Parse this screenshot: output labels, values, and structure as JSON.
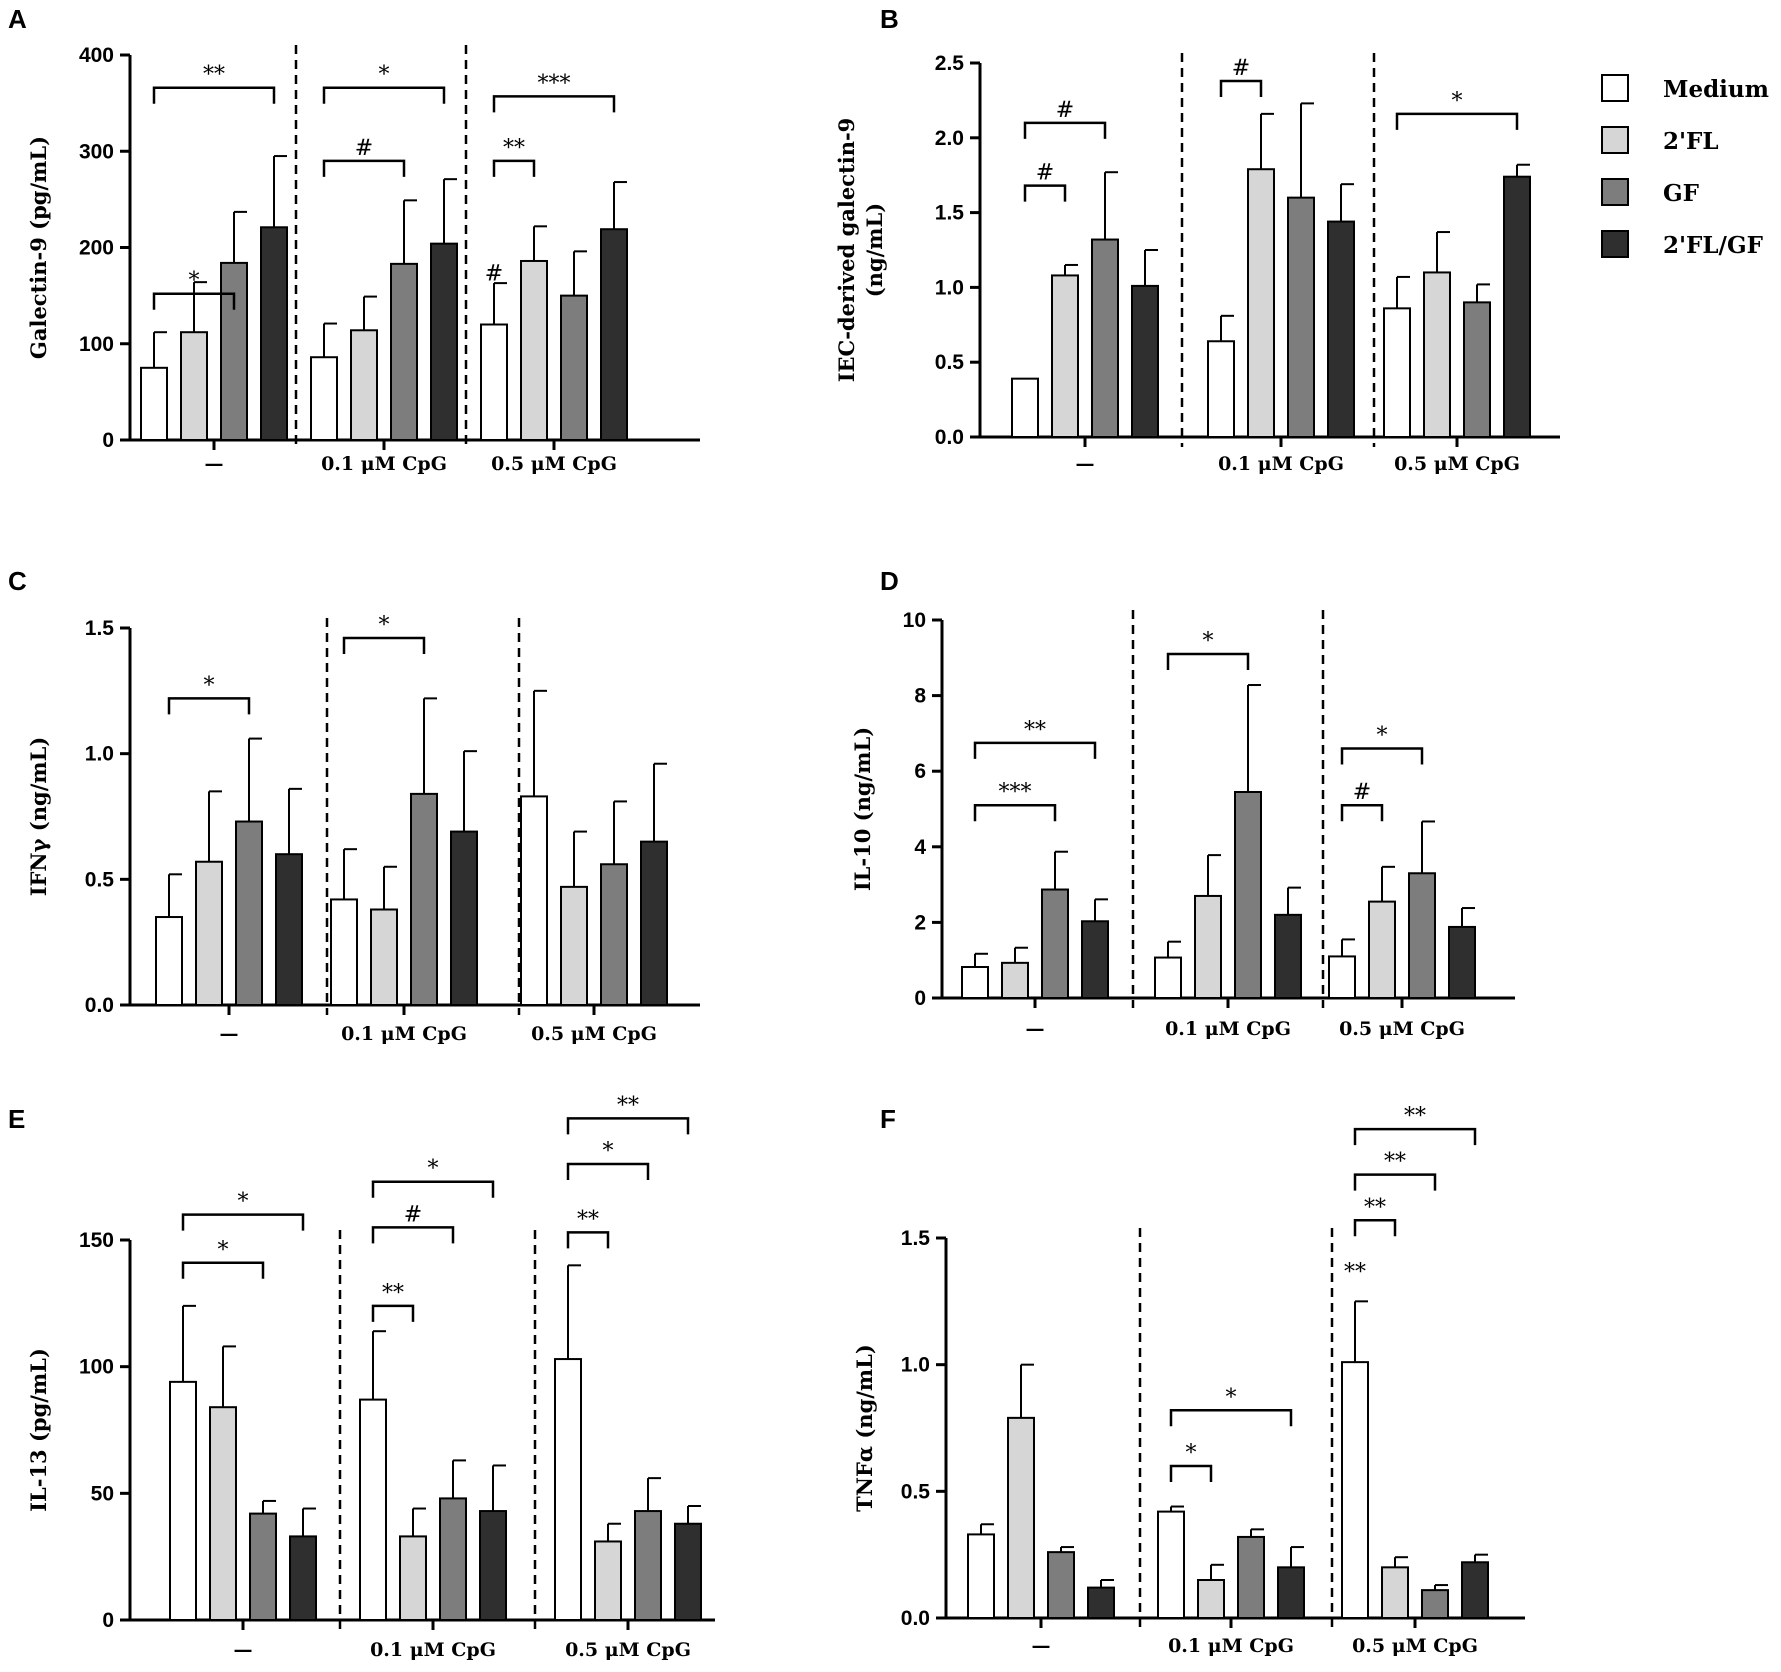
{
  "colors": {
    "series": [
      "#ffffff",
      "#d6d6d6",
      "#7d7d7d",
      "#2f2f2f"
    ],
    "stroke": "#000000"
  },
  "legend": [
    {
      "label": "Medium",
      "color": "#ffffff"
    },
    {
      "label": "2'FL",
      "color": "#d6d6d6"
    },
    {
      "label": "GF",
      "color": "#7d7d7d"
    },
    {
      "label": "2'FL/GF",
      "color": "#2f2f2f"
    }
  ],
  "chart_data": [
    {
      "panel": "A",
      "type": "bar",
      "ylabel_lines": [
        "Galectin-9 (pg/mL)"
      ],
      "ylim": [
        0,
        400
      ],
      "yticks": [
        0,
        100,
        200,
        300,
        400
      ],
      "tick_labels": [
        "0",
        "100",
        "200",
        "300",
        "400"
      ],
      "groups": [
        "—",
        "0.1 μM CpG",
        "0.5 μM CpG"
      ],
      "series": [
        {
          "name": "Medium",
          "values": [
            75,
            86,
            120
          ],
          "errors": [
            37,
            35,
            43
          ]
        },
        {
          "name": "2'FL",
          "values": [
            112,
            114,
            186
          ],
          "errors": [
            52,
            35,
            36
          ]
        },
        {
          "name": "GF",
          "values": [
            184,
            183,
            150
          ],
          "errors": [
            53,
            66,
            46
          ]
        },
        {
          "name": "2'FL/GF",
          "values": [
            221,
            204,
            219
          ],
          "errors": [
            74,
            67,
            49
          ]
        }
      ],
      "significance": [
        {
          "group": 0,
          "from": 0,
          "to": 2,
          "label": "*",
          "level": 152
        },
        {
          "group": 0,
          "from": 0,
          "to": 3,
          "label": "**",
          "level": 366
        },
        {
          "group": 1,
          "from": 0,
          "to": 2,
          "label": "#",
          "level": 290
        },
        {
          "group": 1,
          "from": 0,
          "to": 3,
          "label": "*",
          "level": 366
        },
        {
          "group": 2,
          "from": 0,
          "to": 1,
          "label": "**",
          "level": 290
        },
        {
          "group": 2,
          "from": 0,
          "to": 3,
          "label": "***",
          "level": 357
        },
        {
          "group": 2,
          "bar": 0,
          "label": "#",
          "level": 174
        }
      ]
    },
    {
      "panel": "B",
      "type": "bar",
      "ylabel_lines": [
        "IEC-derived galectin-9",
        "(ng/mL)"
      ],
      "ylim": [
        0,
        2.5
      ],
      "yticks": [
        0,
        0.5,
        1,
        1.5,
        2,
        2.5
      ],
      "tick_labels": [
        "0.0",
        "0.5",
        "1.0",
        "1.5",
        "2.0",
        "2.5"
      ],
      "groups": [
        "—",
        "0.1 μM CpG",
        "0.5 μM CpG"
      ],
      "series": [
        {
          "name": "Medium",
          "values": [
            0.39,
            0.64,
            0.86
          ],
          "errors": [
            0,
            0.17,
            0.21
          ]
        },
        {
          "name": "2'FL",
          "values": [
            1.08,
            1.79,
            1.1
          ],
          "errors": [
            0.07,
            0.37,
            0.27
          ]
        },
        {
          "name": "GF",
          "values": [
            1.32,
            1.6,
            0.9
          ],
          "errors": [
            0.45,
            0.63,
            0.12
          ]
        },
        {
          "name": "2'FL/GF",
          "values": [
            1.01,
            1.44,
            1.74
          ],
          "errors": [
            0.24,
            0.25,
            0.08
          ]
        }
      ],
      "significance": [
        {
          "group": 0,
          "from": 0,
          "to": 1,
          "label": "#",
          "level": 1.68
        },
        {
          "group": 0,
          "from": 0,
          "to": 2,
          "label": "#",
          "level": 2.1
        },
        {
          "group": 1,
          "from": 0,
          "to": 1,
          "label": "#",
          "level": 2.38
        },
        {
          "group": 2,
          "from": 0,
          "to": 3,
          "label": "*",
          "level": 2.16
        }
      ]
    },
    {
      "panel": "C",
      "type": "bar",
      "ylabel_lines": [
        "IFNγ (ng/mL)"
      ],
      "ylim": [
        0,
        1.5
      ],
      "yticks": [
        0,
        0.5,
        1,
        1.5
      ],
      "tick_labels": [
        "0.0",
        "0.5",
        "1.0",
        "1.5"
      ],
      "groups": [
        "—",
        "0.1 μM CpG",
        "0.5 μM CpG"
      ],
      "series": [
        {
          "name": "Medium",
          "values": [
            0.35,
            0.42,
            0.83
          ],
          "errors": [
            0.17,
            0.2,
            0.42
          ]
        },
        {
          "name": "2'FL",
          "values": [
            0.57,
            0.38,
            0.47
          ],
          "errors": [
            0.28,
            0.17,
            0.22
          ]
        },
        {
          "name": "GF",
          "values": [
            0.73,
            0.84,
            0.56
          ],
          "errors": [
            0.33,
            0.38,
            0.25
          ]
        },
        {
          "name": "2'FL/GF",
          "values": [
            0.6,
            0.69,
            0.65
          ],
          "errors": [
            0.26,
            0.32,
            0.31
          ]
        }
      ],
      "significance": [
        {
          "group": 0,
          "from": 0,
          "to": 2,
          "label": "*",
          "level": 1.22
        },
        {
          "group": 1,
          "from": 0,
          "to": 2,
          "label": "*",
          "level": 1.46
        }
      ]
    },
    {
      "panel": "D",
      "type": "bar",
      "ylabel_lines": [
        "IL-10 (ng/mL)"
      ],
      "ylim": [
        0,
        10
      ],
      "yticks": [
        0,
        2,
        4,
        6,
        8,
        10
      ],
      "tick_labels": [
        "0",
        "2",
        "4",
        "6",
        "8",
        "10"
      ],
      "groups": [
        "—",
        "0.1 μM CpG",
        "0.5 μM CpG"
      ],
      "series": [
        {
          "name": "Medium",
          "values": [
            0.82,
            1.07,
            1.1
          ],
          "errors": [
            0.35,
            0.42,
            0.45
          ]
        },
        {
          "name": "2'FL",
          "values": [
            0.93,
            2.7,
            2.55
          ],
          "errors": [
            0.4,
            1.08,
            0.92
          ]
        },
        {
          "name": "GF",
          "values": [
            2.87,
            5.45,
            3.3
          ],
          "errors": [
            1.0,
            2.83,
            1.37
          ]
        },
        {
          "name": "2'FL/GF",
          "values": [
            2.03,
            2.2,
            1.88
          ],
          "errors": [
            0.58,
            0.72,
            0.5
          ]
        }
      ],
      "significance": [
        {
          "group": 0,
          "from": 0,
          "to": 2,
          "label": "***",
          "level": 5.1
        },
        {
          "group": 0,
          "from": 0,
          "to": 3,
          "label": "**",
          "level": 6.75
        },
        {
          "group": 1,
          "from": 0,
          "to": 2,
          "label": "*",
          "level": 9.1
        },
        {
          "group": 2,
          "from": 0,
          "to": 1,
          "label": "#",
          "level": 5.1
        },
        {
          "group": 2,
          "from": 0,
          "to": 2,
          "label": "*",
          "level": 6.6
        }
      ]
    },
    {
      "panel": "E",
      "type": "bar",
      "ylabel_lines": [
        "IL-13 (pg/mL)"
      ],
      "ylim": [
        0,
        150
      ],
      "yticks": [
        0,
        50,
        100,
        150
      ],
      "tick_labels": [
        "0",
        "50",
        "100",
        "150"
      ],
      "groups": [
        "—",
        "0.1 μM CpG",
        "0.5 μM CpG"
      ],
      "series": [
        {
          "name": "Medium",
          "values": [
            94,
            87,
            103
          ],
          "errors": [
            30,
            27,
            37
          ]
        },
        {
          "name": "2'FL",
          "values": [
            84,
            33,
            31
          ],
          "errors": [
            24,
            11,
            7
          ]
        },
        {
          "name": "GF",
          "values": [
            42,
            48,
            43
          ],
          "errors": [
            5,
            15,
            13
          ]
        },
        {
          "name": "2'FL/GF",
          "values": [
            33,
            43,
            38
          ],
          "errors": [
            11,
            18,
            7
          ]
        }
      ],
      "significance": [
        {
          "group": 0,
          "from": 0,
          "to": 2,
          "label": "*",
          "level": 141
        },
        {
          "group": 0,
          "from": 0,
          "to": 3,
          "label": "*",
          "level": 160
        },
        {
          "group": 1,
          "from": 0,
          "to": 1,
          "label": "**",
          "level": 124
        },
        {
          "group": 1,
          "from": 0,
          "to": 2,
          "label": "#",
          "level": 155
        },
        {
          "group": 1,
          "from": 0,
          "to": 3,
          "label": "*",
          "level": 173
        },
        {
          "group": 2,
          "from": 0,
          "to": 1,
          "label": "**",
          "level": 153
        },
        {
          "group": 2,
          "from": 0,
          "to": 2,
          "label": "*",
          "level": 180
        },
        {
          "group": 2,
          "from": 0,
          "to": 3,
          "label": "**",
          "level": 198
        }
      ]
    },
    {
      "panel": "F",
      "type": "bar",
      "ylabel_lines": [
        "TNFα (ng/mL)"
      ],
      "ylim": [
        0,
        1.5
      ],
      "yticks": [
        0,
        0.5,
        1,
        1.5
      ],
      "tick_labels": [
        "0.0",
        "0.5",
        "1.0",
        "1.5"
      ],
      "groups": [
        "—",
        "0.1 μM CpG",
        "0.5 μM CpG"
      ],
      "series": [
        {
          "name": "Medium",
          "values": [
            0.33,
            0.42,
            1.01
          ],
          "errors": [
            0.04,
            0.02,
            0.24
          ]
        },
        {
          "name": "2'FL",
          "values": [
            0.79,
            0.15,
            0.2
          ],
          "errors": [
            0.21,
            0.06,
            0.04
          ]
        },
        {
          "name": "GF",
          "values": [
            0.26,
            0.32,
            0.11
          ],
          "errors": [
            0.02,
            0.03,
            0.02
          ]
        },
        {
          "name": "2'FL/GF",
          "values": [
            0.12,
            0.2,
            0.22
          ],
          "errors": [
            0.03,
            0.08,
            0.03
          ]
        }
      ],
      "significance": [
        {
          "group": 1,
          "from": 0,
          "to": 1,
          "label": "*",
          "level": 0.6
        },
        {
          "group": 1,
          "from": 0,
          "to": 3,
          "label": "*",
          "level": 0.82
        },
        {
          "group": 2,
          "from": 0,
          "to": 1,
          "label": "**",
          "level": 1.57
        },
        {
          "group": 2,
          "from": 0,
          "to": 2,
          "label": "**",
          "level": 1.75
        },
        {
          "group": 2,
          "from": 0,
          "to": 3,
          "label": "**",
          "level": 1.93
        },
        {
          "group": 2,
          "bar": 0,
          "label": "**",
          "level": 1.37
        }
      ]
    }
  ]
}
